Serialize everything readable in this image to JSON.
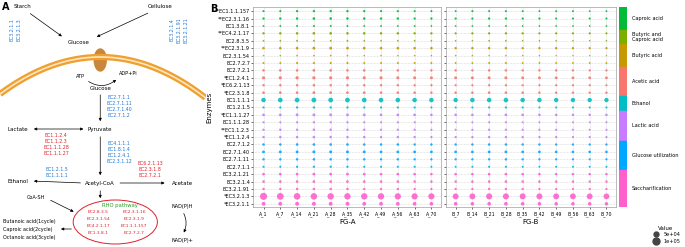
{
  "diagram": {
    "label": "A",
    "starch": "Starch",
    "cellulose": "Cellulose",
    "starch_enzymes": [
      "EC3.2.1.1",
      "EC3.2.1.3"
    ],
    "cellulose_enzymes": [
      "EC3.2.1.4",
      "EC3.2.1.91",
      "EC3.2.1.21"
    ],
    "glucose_out": "Glucose",
    "atp": "ATP",
    "adp": "ADP+Pi",
    "glucose_in": "Glucose",
    "glycolysis_enzymes": [
      "EC2.7.1.1",
      "EC2.7.1.11",
      "EC2.7.1.40",
      "EC2.7.1.2"
    ],
    "pyruvate": "Pyruvate",
    "lactate": "Lactate",
    "lactate_enzymes": [
      "EC1.1.2.4",
      "EC1.1.2.3",
      "EC1.1.1.28",
      "EC1.1.1.27"
    ],
    "pdh_enzymes": [
      "EC4.1.1.1",
      "EC1.8.1.4",
      "EC1.2.4.1",
      "EC2.3.1.12"
    ],
    "ethanol": "Ethanol",
    "ethanol_enzymes": [
      "EC1.2.1.5",
      "EC1.1.1.1"
    ],
    "acetyl_coa": "Acetyl-CoA",
    "coa": "CoA-SH",
    "acetate": "Acetate",
    "acetate_enzymes": [
      "EC6.2.1.13",
      "EC2.3.1.8",
      "EC2.7.2.1"
    ],
    "rho": "RHO pathway",
    "rho_enzymes": [
      "EC2.8.3.5",
      "EC2.3.1.54",
      "EC4.2.1.17",
      "EC1.3.8.1",
      "EC2.3.1.16",
      "EC2.3.1.9",
      "EC1.1.1.157",
      "EC2.7.2.7"
    ],
    "nadph": "NAD(P)H",
    "nadp": "NAD(P)+",
    "products": [
      "Butanoic acid(1cycle)",
      "Caproic acid(2cycle)",
      "Octanoic acid(3cycle)"
    ]
  },
  "chart_data": {
    "type": "scatter",
    "label": "B",
    "y_label": "Enzymes",
    "grid": true,
    "facets": [
      {
        "name": "FG-A",
        "samples": [
          "A_1",
          "A_7",
          "A_14",
          "A_21",
          "A_28",
          "A_35",
          "A_42",
          "A_49",
          "A_56",
          "A_63",
          "A_70"
        ]
      },
      {
        "name": "FG-B",
        "samples": [
          "B_7",
          "B_14",
          "B_21",
          "B_28",
          "B_35",
          "B_42",
          "B_49",
          "B_56",
          "B_63",
          "B_70"
        ]
      }
    ],
    "size_legend": {
      "title": "Value",
      "sizes": [
        {
          "value": 50000,
          "label": "5e+04"
        },
        {
          "value": 100000,
          "label": "1e+05"
        }
      ]
    },
    "groups": [
      {
        "name": "Caproic acid",
        "color": "#00BA38",
        "enzymes": [
          "**EC1.1.1.157",
          "**EC2.3.1.16",
          "EC1.3.8.1"
        ],
        "values": [
          [
            9000,
            10000,
            11000,
            11000,
            12000,
            12000,
            11000,
            10000,
            10000,
            9000,
            9000,
            8000,
            9000,
            9000,
            9000,
            8000,
            8000,
            8000,
            8000,
            7000,
            7000
          ],
          [
            11000,
            12000,
            13000,
            14000,
            14000,
            13000,
            13000,
            12000,
            12000,
            11000,
            11000,
            10000,
            10000,
            11000,
            11000,
            10000,
            10000,
            9000,
            9000,
            9000,
            9000
          ],
          [
            7000,
            7000,
            8000,
            8000,
            8000,
            8000,
            7000,
            7000,
            7000,
            7000,
            6000,
            6000,
            6000,
            7000,
            7000,
            6000,
            6000,
            6000,
            6000,
            6000,
            6000
          ]
        ]
      },
      {
        "name": "Butyric and\nCaproic acid",
        "color": "#7CAE00",
        "enzymes": [
          "**EC4.2.1.17",
          "EC2.8.3.5"
        ],
        "values": [
          [
            12000,
            13000,
            14000,
            15000,
            15000,
            14000,
            14000,
            13000,
            13000,
            12000,
            12000,
            10000,
            11000,
            11000,
            11000,
            11000,
            10000,
            10000,
            10000,
            10000,
            9000
          ],
          [
            6000,
            6000,
            7000,
            7000,
            7000,
            7000,
            6000,
            6000,
            6000,
            6000,
            6000,
            5000,
            5000,
            6000,
            6000,
            5000,
            5000,
            5000,
            5000,
            5000,
            5000
          ]
        ]
      },
      {
        "name": "Butyric acid",
        "color": "#C49A00",
        "enzymes": [
          "**EC2.3.1.9",
          "EC2.3.1.54",
          "EC2.7.2.7"
        ],
        "values": [
          [
            14000,
            15000,
            16000,
            17000,
            17000,
            16000,
            16000,
            15000,
            15000,
            14000,
            14000,
            12000,
            13000,
            13000,
            13000,
            12000,
            12000,
            12000,
            12000,
            11000,
            11000
          ],
          [
            5000,
            5000,
            6000,
            6000,
            6000,
            6000,
            5000,
            5000,
            5000,
            5000,
            5000,
            5000,
            5000,
            5000,
            5000,
            5000,
            5000,
            4000,
            4000,
            4000,
            4000
          ],
          [
            8000,
            8000,
            9000,
            9000,
            9000,
            9000,
            8000,
            8000,
            8000,
            8000,
            8000,
            7000,
            7000,
            8000,
            8000,
            7000,
            7000,
            7000,
            7000,
            7000,
            7000
          ]
        ]
      },
      {
        "name": "Acetic acid",
        "color": "#F8766D",
        "enzymes": [
          "EC2.7.2.1",
          "*EC1.2.4.1",
          "*EC6.2.1.13",
          "*EC2.3.1.8"
        ],
        "values": [
          [
            13000,
            14000,
            14000,
            15000,
            15000,
            14000,
            14000,
            13000,
            13000,
            13000,
            12000,
            12000,
            12000,
            13000,
            13000,
            12000,
            12000,
            12000,
            11000,
            11000,
            11000
          ],
          [
            20000,
            21000,
            22000,
            22000,
            21000,
            21000,
            20000,
            20000,
            19000,
            19000,
            19000,
            17000,
            18000,
            18000,
            18000,
            17000,
            17000,
            17000,
            16000,
            16000,
            16000
          ],
          [
            12000,
            12000,
            13000,
            13000,
            13000,
            13000,
            12000,
            12000,
            12000,
            11000,
            11000,
            10000,
            10000,
            11000,
            11000,
            10000,
            10000,
            10000,
            10000,
            10000,
            9000
          ],
          [
            14000,
            15000,
            15000,
            16000,
            16000,
            15000,
            15000,
            14000,
            14000,
            14000,
            13000,
            13000,
            13000,
            14000,
            14000,
            13000,
            13000,
            12000,
            12000,
            12000,
            12000
          ]
        ]
      },
      {
        "name": "Ethanol",
        "color": "#00BFC4",
        "enzymes": [
          "EC1.1.1.1",
          "EC1.2.1.5"
        ],
        "values": [
          [
            42000,
            45000,
            47000,
            48000,
            47000,
            46000,
            45000,
            44000,
            43000,
            42000,
            42000,
            40000,
            42000,
            43000,
            43000,
            42000,
            41000,
            40000,
            40000,
            39000,
            39000
          ],
          [
            10000,
            10000,
            11000,
            11000,
            11000,
            11000,
            10000,
            10000,
            10000,
            10000,
            9000,
            9000,
            9000,
            10000,
            10000,
            9000,
            9000,
            9000,
            9000,
            9000,
            9000
          ]
        ]
      },
      {
        "name": "Lactic acid",
        "color": "#C77CFF",
        "enzymes": [
          "*EC1.1.1.27",
          "EC1.1.1.28",
          "**EC1.1.2.3",
          "*EC1.1.2.4"
        ],
        "values": [
          [
            15000,
            16000,
            17000,
            17000,
            17000,
            16000,
            16000,
            15000,
            15000,
            15000,
            14000,
            14000,
            14000,
            15000,
            15000,
            14000,
            14000,
            13000,
            13000,
            13000,
            13000
          ],
          [
            9000,
            9000,
            10000,
            10000,
            10000,
            10000,
            9000,
            9000,
            9000,
            9000,
            8000,
            8000,
            8000,
            9000,
            9000,
            8000,
            8000,
            8000,
            8000,
            8000,
            8000
          ],
          [
            11000,
            12000,
            12000,
            13000,
            13000,
            12000,
            12000,
            11000,
            11000,
            11000,
            10000,
            10000,
            10000,
            11000,
            11000,
            10000,
            10000,
            10000,
            9000,
            9000,
            9000
          ],
          [
            12000,
            13000,
            13000,
            14000,
            14000,
            13000,
            13000,
            12000,
            12000,
            12000,
            11000,
            11000,
            11000,
            12000,
            12000,
            11000,
            11000,
            11000,
            10000,
            10000,
            10000
          ]
        ]
      },
      {
        "name": "Glucose utilization",
        "color": "#00A9FF",
        "enzymes": [
          "EC2.7.1.2",
          "EC2.7.1.40",
          "EC2.7.1.11",
          "EC2.7.1.1"
        ],
        "values": [
          [
            13000,
            13000,
            14000,
            14000,
            14000,
            14000,
            13000,
            13000,
            13000,
            12000,
            12000,
            12000,
            12000,
            13000,
            13000,
            12000,
            12000,
            11000,
            11000,
            11000,
            11000
          ],
          [
            17000,
            18000,
            18000,
            19000,
            19000,
            18000,
            18000,
            17000,
            17000,
            17000,
            16000,
            16000,
            16000,
            17000,
            17000,
            16000,
            16000,
            15000,
            15000,
            15000,
            15000
          ],
          [
            12000,
            12000,
            13000,
            13000,
            13000,
            13000,
            12000,
            12000,
            12000,
            11000,
            11000,
            11000,
            11000,
            12000,
            12000,
            11000,
            11000,
            10000,
            10000,
            10000,
            10000
          ],
          [
            9000,
            9000,
            10000,
            10000,
            10000,
            10000,
            9000,
            9000,
            9000,
            9000,
            8000,
            8000,
            8000,
            9000,
            9000,
            8000,
            8000,
            8000,
            8000,
            8000,
            8000
          ]
        ]
      },
      {
        "name": "Saccharification",
        "color": "#FF61CC",
        "enzymes": [
          "EC3.2.1.21",
          "EC3.2.1.4",
          "EC3.2.1.91",
          "*EC3.2.1.3",
          "*EC3.2.1.1"
        ],
        "values": [
          [
            15000,
            16000,
            16000,
            17000,
            17000,
            16000,
            16000,
            15000,
            15000,
            15000,
            14000,
            14000,
            14000,
            15000,
            15000,
            14000,
            14000,
            13000,
            13000,
            13000,
            13000
          ],
          [
            14000,
            14000,
            15000,
            15000,
            15000,
            15000,
            14000,
            14000,
            14000,
            13000,
            13000,
            13000,
            13000,
            14000,
            14000,
            13000,
            13000,
            12000,
            12000,
            12000,
            12000
          ],
          [
            12000,
            12000,
            13000,
            13000,
            13000,
            13000,
            12000,
            12000,
            12000,
            11000,
            11000,
            11000,
            11000,
            12000,
            12000,
            11000,
            11000,
            10000,
            10000,
            10000,
            10000
          ],
          [
            105000,
            95000,
            90000,
            88000,
            86000,
            85000,
            84000,
            83000,
            82000,
            80000,
            80000,
            72000,
            75000,
            76000,
            76000,
            75000,
            74000,
            73000,
            72000,
            71000,
            70000
          ],
          [
            30000,
            31000,
            32000,
            32000,
            31000,
            31000,
            30000,
            30000,
            29000,
            29000,
            28000,
            27000,
            27000,
            28000,
            28000,
            27000,
            27000,
            26000,
            26000,
            26000,
            25000
          ]
        ]
      }
    ]
  }
}
